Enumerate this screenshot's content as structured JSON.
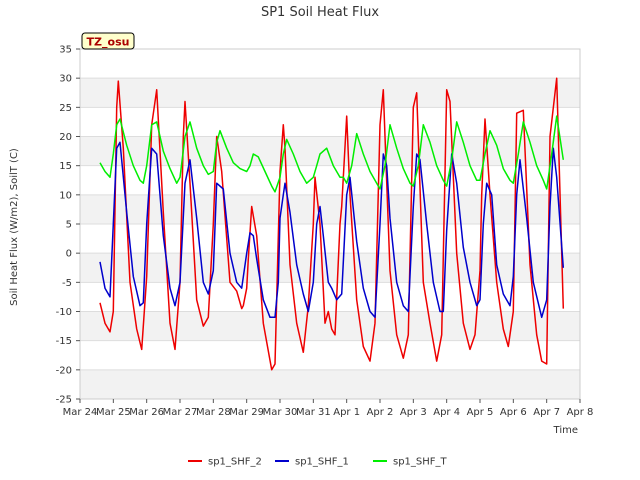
{
  "chart_data": {
    "type": "line",
    "title": "SP1 Soil Heat Flux",
    "xlabel": "Time",
    "ylabel": "Soil Heat Flux (W/m2), SoilT (C)",
    "ylim": [
      -25,
      35
    ],
    "yticks": [
      -25,
      -20,
      -15,
      -10,
      -5,
      0,
      5,
      10,
      15,
      20,
      25,
      30,
      35
    ],
    "x_range": [
      "2024-03-24",
      "2024-04-08"
    ],
    "xticks": [
      {
        "day": 0,
        "label": "Mar 24"
      },
      {
        "day": 1,
        "label": "Mar 25"
      },
      {
        "day": 2,
        "label": "Mar 26"
      },
      {
        "day": 3,
        "label": "Mar 27"
      },
      {
        "day": 4,
        "label": "Mar 28"
      },
      {
        "day": 5,
        "label": "Mar 29"
      },
      {
        "day": 6,
        "label": "Mar 30"
      },
      {
        "day": 7,
        "label": "Mar 31"
      },
      {
        "day": 8,
        "label": "Apr 1"
      },
      {
        "day": 9,
        "label": "Apr 2"
      },
      {
        "day": 10,
        "label": "Apr 3"
      },
      {
        "day": 11,
        "label": "Apr 4"
      },
      {
        "day": 12,
        "label": "Apr 5"
      },
      {
        "day": 13,
        "label": "Apr 6"
      },
      {
        "day": 14,
        "label": "Apr 7"
      },
      {
        "day": 15,
        "label": "Apr 8"
      }
    ],
    "grid": true,
    "legend_position": "bottom",
    "annotation": "TZ_osu",
    "series": [
      {
        "name": "sp1_SHF_2",
        "color": "#ee0000",
        "x_day": [
          0.6,
          0.75,
          0.9,
          1.0,
          1.1,
          1.15,
          1.3,
          1.5,
          1.7,
          1.85,
          2.0,
          2.15,
          2.3,
          2.5,
          2.7,
          2.85,
          3.0,
          3.1,
          3.15,
          3.3,
          3.5,
          3.7,
          3.85,
          4.0,
          4.1,
          4.25,
          4.5,
          4.7,
          4.85,
          4.9,
          5.0,
          5.05,
          5.15,
          5.3,
          5.5,
          5.75,
          5.85,
          6.0,
          6.1,
          6.15,
          6.3,
          6.5,
          6.7,
          6.85,
          7.0,
          7.05,
          7.2,
          7.35,
          7.45,
          7.55,
          7.65,
          7.8,
          7.85,
          8.0,
          8.1,
          8.3,
          8.5,
          8.7,
          8.85,
          9.0,
          9.1,
          9.15,
          9.3,
          9.5,
          9.7,
          9.85,
          10.0,
          10.1,
          10.3,
          10.5,
          10.7,
          10.85,
          11.0,
          11.1,
          11.3,
          11.5,
          11.7,
          11.85,
          12.0,
          12.05,
          12.15,
          12.3,
          12.5,
          12.7,
          12.85,
          13.0,
          13.1,
          13.3,
          13.5,
          13.7,
          13.85,
          14.0,
          14.1,
          14.3,
          14.5
        ],
        "y": [
          -8.5,
          -12,
          -13.5,
          -10,
          25,
          29.5,
          18,
          -5,
          -13,
          -16.5,
          -4,
          22,
          28,
          7,
          -12,
          -16.5,
          -5,
          20,
          26,
          12,
          -8,
          -12.5,
          -11,
          5,
          20,
          14,
          -5,
          -6.5,
          -9.5,
          -9,
          -6,
          -1,
          8,
          3,
          -12,
          -20,
          -19,
          14,
          22,
          18,
          -2,
          -12,
          -17,
          -9,
          5,
          13,
          5,
          -12,
          -10,
          -13,
          -14,
          5,
          8,
          23.5,
          10,
          -8,
          -16,
          -18.5,
          -12,
          22,
          28,
          20,
          -3,
          -14,
          -18,
          -14,
          25,
          27.5,
          -5,
          -12,
          -18.5,
          -14,
          28,
          26,
          0,
          -12,
          -16.5,
          -14,
          -3,
          10,
          23,
          10,
          -5,
          -13,
          -16,
          -10,
          24,
          24.5,
          -2,
          -14,
          -18.5,
          -19,
          20,
          30,
          -9.5
        ]
      },
      {
        "name": "sp1_SHF_1",
        "color": "#0000cc",
        "x_day": [
          0.6,
          0.75,
          0.9,
          1.0,
          1.1,
          1.2,
          1.4,
          1.6,
          1.8,
          1.9,
          2.0,
          2.15,
          2.3,
          2.5,
          2.7,
          2.85,
          3.0,
          3.15,
          3.3,
          3.5,
          3.7,
          3.85,
          4.0,
          4.1,
          4.3,
          4.5,
          4.7,
          4.85,
          5.0,
          5.1,
          5.2,
          5.3,
          5.5,
          5.7,
          5.85,
          5.95,
          6.0,
          6.1,
          6.15,
          6.3,
          6.5,
          6.7,
          6.85,
          7.0,
          7.1,
          7.2,
          7.3,
          7.45,
          7.55,
          7.7,
          7.85,
          8.0,
          8.1,
          8.3,
          8.5,
          8.7,
          8.85,
          9.0,
          9.1,
          9.2,
          9.3,
          9.5,
          9.7,
          9.85,
          10.0,
          10.1,
          10.2,
          10.4,
          10.6,
          10.8,
          10.9,
          11.0,
          11.15,
          11.3,
          11.5,
          11.7,
          11.9,
          12.0,
          12.1,
          12.2,
          12.35,
          12.5,
          12.7,
          12.9,
          13.0,
          13.1,
          13.2,
          13.4,
          13.6,
          13.85,
          14.0,
          14.1,
          14.2,
          14.3,
          14.5
        ],
        "y": [
          -1.5,
          -6,
          -7.5,
          5,
          18,
          19,
          7,
          -4,
          -9,
          -8.5,
          5,
          18,
          17,
          3,
          -6,
          -9,
          -5,
          12,
          16,
          6,
          -5,
          -7,
          -3,
          12,
          11,
          0,
          -5,
          -6,
          0,
          3.5,
          3,
          -1,
          -8,
          -11,
          -11,
          -5,
          6,
          10,
          12,
          7,
          -2,
          -7,
          -10,
          -5,
          5,
          8,
          3,
          -5,
          -6,
          -8,
          -7,
          10,
          13,
          2,
          -6,
          -10,
          -11,
          5,
          17,
          15,
          6,
          -5,
          -9,
          -10,
          8,
          17,
          16,
          5,
          -5,
          -10,
          -10,
          4,
          17,
          12,
          1,
          -5,
          -9,
          -8,
          5,
          12,
          10,
          -2,
          -7,
          -9,
          -4,
          10,
          16,
          6,
          -5,
          -11,
          -8,
          8,
          18,
          13,
          -2.5
        ]
      },
      {
        "name": "sp1_SHF_T",
        "color": "#00ee00",
        "x_day": [
          0.6,
          0.75,
          0.9,
          1.0,
          1.1,
          1.2,
          1.4,
          1.6,
          1.8,
          1.9,
          2.0,
          2.15,
          2.3,
          2.5,
          2.7,
          2.9,
          3.0,
          3.15,
          3.3,
          3.5,
          3.7,
          3.85,
          4.0,
          4.1,
          4.2,
          4.4,
          4.6,
          4.8,
          5.0,
          5.1,
          5.2,
          5.35,
          5.55,
          5.75,
          5.85,
          6.0,
          6.1,
          6.2,
          6.4,
          6.6,
          6.8,
          7.0,
          7.1,
          7.2,
          7.4,
          7.6,
          7.8,
          7.9,
          8.0,
          8.15,
          8.3,
          8.5,
          8.7,
          8.9,
          9.0,
          9.15,
          9.3,
          9.5,
          9.7,
          9.9,
          10.0,
          10.15,
          10.3,
          10.5,
          10.7,
          10.9,
          11.0,
          11.15,
          11.3,
          11.5,
          11.7,
          11.9,
          12.0,
          12.15,
          12.3,
          12.5,
          12.7,
          12.9,
          13.0,
          13.15,
          13.3,
          13.5,
          13.7,
          13.9,
          14.0,
          14.15,
          14.3,
          14.5
        ],
        "y": [
          15.5,
          14,
          13,
          17,
          22,
          23,
          18.5,
          15,
          12.5,
          12,
          15,
          22,
          22.5,
          17.5,
          14.5,
          12,
          13,
          20,
          22.5,
          18,
          15,
          13.5,
          14,
          19,
          21,
          18,
          15.5,
          14.5,
          14,
          15,
          17,
          16.5,
          14,
          11.5,
          10.5,
          13,
          17,
          19.5,
          17,
          14,
          12,
          13,
          15,
          17,
          18,
          15,
          13,
          13,
          12,
          15,
          20.5,
          17,
          14,
          12,
          11,
          15,
          22,
          18,
          14.5,
          12,
          11.5,
          15,
          22,
          19,
          15,
          12.5,
          11.5,
          16,
          22.5,
          19,
          15,
          12.5,
          12.5,
          17,
          21,
          18.5,
          14.5,
          12.5,
          12,
          17,
          22.5,
          19,
          15,
          12.5,
          11,
          17,
          23.5,
          16
        ]
      }
    ]
  }
}
